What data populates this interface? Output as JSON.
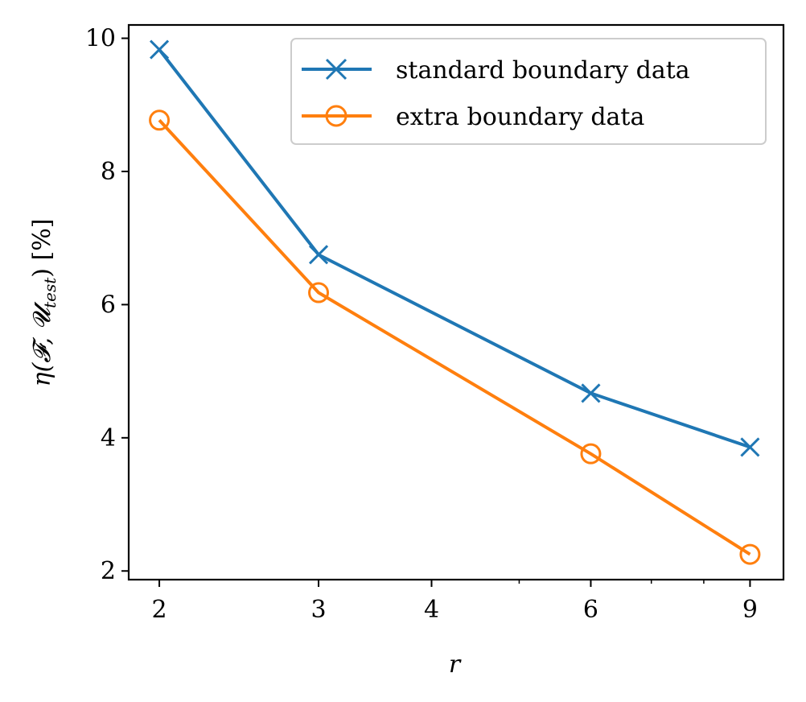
{
  "chart_data": {
    "type": "line",
    "xscale": "log",
    "xlabel": "r",
    "ylabel": "η(𝓕, 𝓤test) [%]",
    "ylabel_main": "η(𝓕, 𝓤",
    "ylabel_sub": "test",
    "ylabel_tail": ") [%]",
    "xlim": [
      1.85,
      9.8
    ],
    "ylim": [
      1.87,
      10.2
    ],
    "xticks": [
      2,
      3,
      4,
      6,
      9
    ],
    "xtick_labels": [
      "2",
      "3",
      "4",
      "6",
      "9"
    ],
    "yticks": [
      2,
      4,
      6,
      8,
      10
    ],
    "ytick_labels": [
      "2",
      "4",
      "6",
      "8",
      "10"
    ],
    "grid": false,
    "legend_position": "top-right",
    "series": [
      {
        "name": "standard boundary data",
        "color": "#1f77b4",
        "marker": "x",
        "x": [
          2,
          3,
          6,
          9
        ],
        "y": [
          9.83,
          6.75,
          4.67,
          3.86
        ]
      },
      {
        "name": "extra boundary data",
        "color": "#ff7f0e",
        "marker": "o",
        "x": [
          2,
          3,
          6,
          9
        ],
        "y": [
          8.77,
          6.18,
          3.76,
          2.25
        ]
      }
    ]
  }
}
